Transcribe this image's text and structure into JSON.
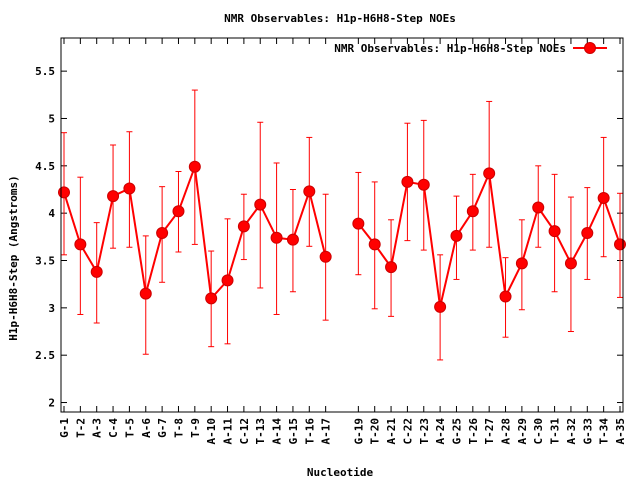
{
  "chart_data": {
    "type": "line",
    "title": "NMR Observables: H1p-H6H8-Step NOEs",
    "xlabel": "Nucleotide",
    "ylabel": "H1p-H6H8-Step (Angstroms)",
    "ylim": [
      1.9,
      5.85
    ],
    "yticks": [
      "2",
      "2.5",
      "3",
      "3.5",
      "4",
      "4.5",
      "5",
      "5.5"
    ],
    "grid": false,
    "legend_position": "top-right",
    "series": [
      {
        "name": "NMR Observables: H1p-H6H8-Step NOEs",
        "color": "#ff0000",
        "points": [
          {
            "x": "G-1",
            "y": 4.22,
            "low": 3.56,
            "high": 4.85
          },
          {
            "x": "T-2",
            "y": 3.67,
            "low": 2.93,
            "high": 4.38
          },
          {
            "x": "A-3",
            "y": 3.38,
            "low": 2.84,
            "high": 3.9
          },
          {
            "x": "C-4",
            "y": 4.18,
            "low": 3.63,
            "high": 4.72
          },
          {
            "x": "T-5",
            "y": 4.26,
            "low": 3.64,
            "high": 4.86
          },
          {
            "x": "A-6",
            "y": 3.15,
            "low": 2.51,
            "high": 3.76
          },
          {
            "x": "G-7",
            "y": 3.79,
            "low": 3.27,
            "high": 4.28
          },
          {
            "x": "T-8",
            "y": 4.02,
            "low": 3.59,
            "high": 4.44
          },
          {
            "x": "T-9",
            "y": 4.49,
            "low": 3.67,
            "high": 5.3
          },
          {
            "x": "A-10",
            "y": 3.1,
            "low": 2.59,
            "high": 3.6
          },
          {
            "x": "A-11",
            "y": 3.29,
            "low": 2.62,
            "high": 3.94
          },
          {
            "x": "C-12",
            "y": 3.86,
            "low": 3.51,
            "high": 4.2
          },
          {
            "x": "T-13",
            "y": 4.09,
            "low": 3.21,
            "high": 4.96
          },
          {
            "x": "A-14",
            "y": 3.74,
            "low": 2.93,
            "high": 4.53
          },
          {
            "x": "G-15",
            "y": 3.72,
            "low": 3.17,
            "high": 4.25
          },
          {
            "x": "T-16",
            "y": 4.23,
            "low": 3.65,
            "high": 4.8
          },
          {
            "x": "A-17",
            "y": 3.54,
            "low": 2.87,
            "high": 4.2
          },
          {
            "x": "G-19",
            "y": 3.89,
            "low": 3.35,
            "high": 4.43
          },
          {
            "x": "T-20",
            "y": 3.67,
            "low": 2.99,
            "high": 4.33
          },
          {
            "x": "A-21",
            "y": 3.43,
            "low": 2.91,
            "high": 3.93
          },
          {
            "x": "C-22",
            "y": 4.33,
            "low": 3.71,
            "high": 4.95
          },
          {
            "x": "T-23",
            "y": 4.3,
            "low": 3.61,
            "high": 4.98
          },
          {
            "x": "A-24",
            "y": 3.01,
            "low": 2.45,
            "high": 3.56
          },
          {
            "x": "G-25",
            "y": 3.76,
            "low": 3.3,
            "high": 4.18
          },
          {
            "x": "T-26",
            "y": 4.02,
            "low": 3.61,
            "high": 4.41
          },
          {
            "x": "T-27",
            "y": 4.42,
            "low": 3.64,
            "high": 5.18
          },
          {
            "x": "A-28",
            "y": 3.12,
            "low": 2.69,
            "high": 3.53
          },
          {
            "x": "A-29",
            "y": 3.47,
            "low": 2.98,
            "high": 3.93
          },
          {
            "x": "C-30",
            "y": 4.06,
            "low": 3.64,
            "high": 4.5
          },
          {
            "x": "T-31",
            "y": 3.81,
            "low": 3.17,
            "high": 4.41
          },
          {
            "x": "A-32",
            "y": 3.47,
            "low": 2.75,
            "high": 4.17
          },
          {
            "x": "G-33",
            "y": 3.79,
            "low": 3.3,
            "high": 4.27
          },
          {
            "x": "T-34",
            "y": 4.16,
            "low": 3.54,
            "high": 4.8
          },
          {
            "x": "A-35",
            "y": 3.67,
            "low": 3.11,
            "high": 4.21
          }
        ]
      }
    ]
  }
}
